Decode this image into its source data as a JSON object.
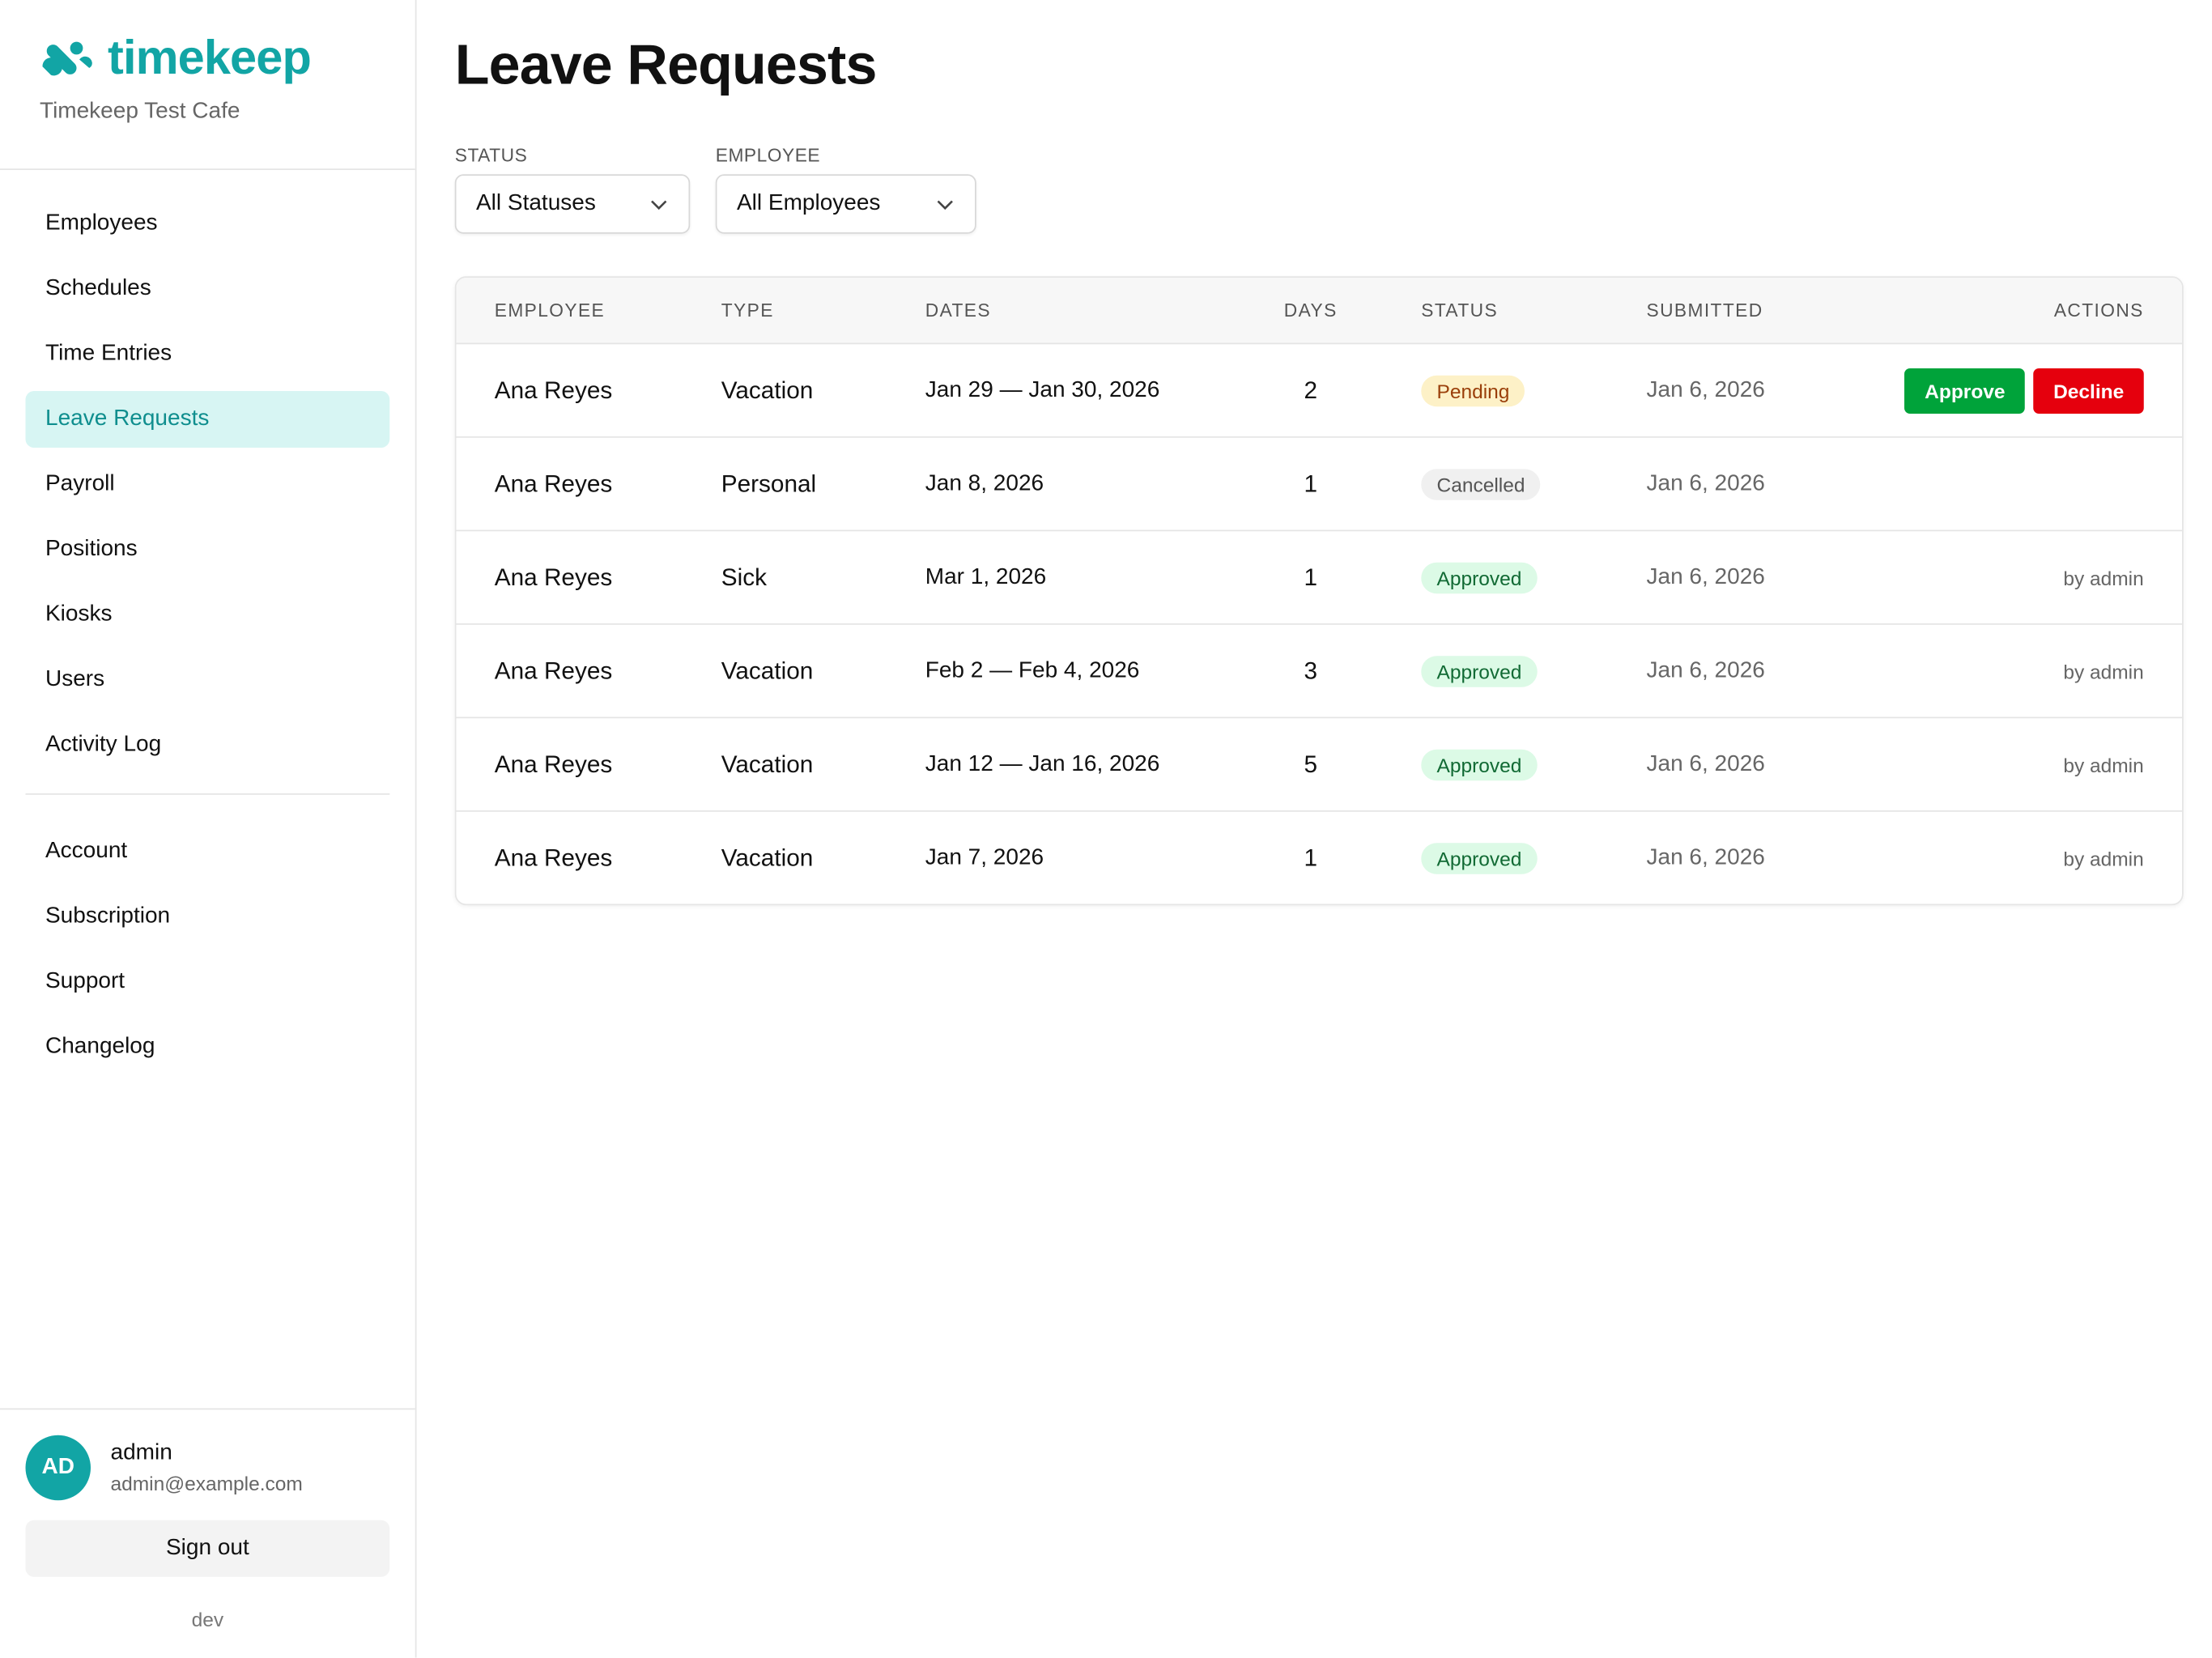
{
  "brand": {
    "name": "timekeep",
    "org": "Timekeep Test Cafe",
    "color": "#12a5a5"
  },
  "nav": {
    "primary": [
      "Employees",
      "Schedules",
      "Time Entries",
      "Leave Requests",
      "Payroll",
      "Positions",
      "Kiosks",
      "Users",
      "Activity Log"
    ],
    "secondary": [
      "Account",
      "Subscription",
      "Support",
      "Changelog"
    ],
    "active": "Leave Requests"
  },
  "user": {
    "initials": "AD",
    "name": "admin",
    "email": "admin@example.com",
    "signout": "Sign out",
    "env": "dev"
  },
  "page": {
    "title": "Leave Requests"
  },
  "filters": {
    "status": {
      "label": "STATUS",
      "value": "All Statuses"
    },
    "employee": {
      "label": "EMPLOYEE",
      "value": "All Employees"
    }
  },
  "table": {
    "headers": [
      "EMPLOYEE",
      "TYPE",
      "DATES",
      "DAYS",
      "STATUS",
      "SUBMITTED",
      "ACTIONS"
    ],
    "rows": [
      {
        "employee": "Ana Reyes",
        "type": "Vacation",
        "dates": "Jan 29 — Jan 30, 2026",
        "days": "2",
        "status": "Pending",
        "submitted": "Jan 6, 2026",
        "approve": "Approve",
        "decline": "Decline"
      },
      {
        "employee": "Ana Reyes",
        "type": "Personal",
        "dates": "Jan 8, 2026",
        "days": "1",
        "status": "Cancelled",
        "submitted": "Jan 6, 2026"
      },
      {
        "employee": "Ana Reyes",
        "type": "Sick",
        "dates": "Mar 1, 2026",
        "days": "1",
        "status": "Approved",
        "submitted": "Jan 6, 2026",
        "by": "by admin"
      },
      {
        "employee": "Ana Reyes",
        "type": "Vacation",
        "dates": "Feb 2 — Feb 4, 2026",
        "days": "3",
        "status": "Approved",
        "submitted": "Jan 6, 2026",
        "by": "by admin"
      },
      {
        "employee": "Ana Reyes",
        "type": "Vacation",
        "dates": "Jan 12 — Jan 16, 2026",
        "days": "5",
        "status": "Approved",
        "submitted": "Jan 6, 2026",
        "by": "by admin"
      },
      {
        "employee": "Ana Reyes",
        "type": "Vacation",
        "dates": "Jan 7, 2026",
        "days": "1",
        "status": "Approved",
        "submitted": "Jan 6, 2026",
        "by": "by admin"
      }
    ]
  }
}
